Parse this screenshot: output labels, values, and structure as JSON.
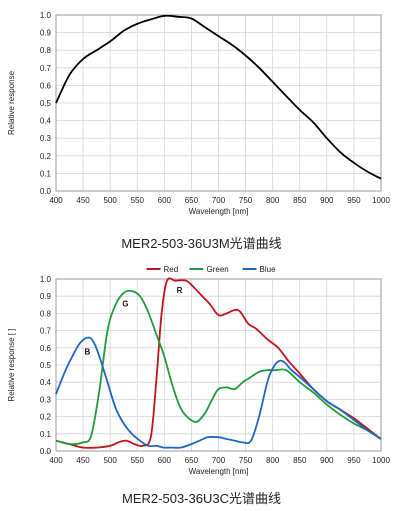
{
  "chart_data": [
    {
      "type": "line",
      "title": "",
      "xlabel": "Wavelength  [nm]",
      "ylabel": "Relative response",
      "xlim": [
        400,
        1000
      ],
      "ylim": [
        0,
        1.0
      ],
      "x_ticks": [
        "400",
        "450",
        "500",
        "550",
        "600",
        "650",
        "700",
        "750",
        "800",
        "850",
        "900",
        "950",
        "1000"
      ],
      "y_ticks": [
        "0.0",
        "0.1",
        "0.2",
        "0.3",
        "0.4",
        "0.5",
        "0.6",
        "0.7",
        "0.8",
        "0.9",
        "1.0"
      ],
      "grid": true,
      "series": [
        {
          "color": "#000000",
          "x": [
            400,
            425,
            450,
            475,
            500,
            525,
            550,
            575,
            600,
            625,
            650,
            675,
            700,
            725,
            750,
            775,
            800,
            825,
            850,
            875,
            900,
            925,
            950,
            975,
            1000
          ],
          "y": [
            0.5,
            0.66,
            0.75,
            0.8,
            0.85,
            0.91,
            0.95,
            0.975,
            0.995,
            0.99,
            0.98,
            0.93,
            0.88,
            0.83,
            0.77,
            0.7,
            0.62,
            0.54,
            0.46,
            0.39,
            0.3,
            0.22,
            0.16,
            0.11,
            0.07
          ]
        }
      ],
      "caption": "MER2-503-36U3M光谱曲线"
    },
    {
      "type": "line",
      "title": "",
      "xlabel": "Wavelength  [nm]",
      "ylabel": "Relative response  [ ]",
      "xlim": [
        400,
        1000
      ],
      "ylim": [
        0,
        1.0
      ],
      "x_ticks": [
        "400",
        "450",
        "500",
        "550",
        "600",
        "650",
        "700",
        "750",
        "800",
        "850",
        "900",
        "950",
        "1000"
      ],
      "y_ticks": [
        "0.0",
        "0.1",
        "0.2",
        "0.3",
        "0.4",
        "0.5",
        "0.6",
        "0.7",
        "0.8",
        "0.9",
        "1.0"
      ],
      "grid": true,
      "legend": "top-center",
      "series": [
        {
          "name": "Red",
          "color": "#c0141b",
          "x": [
            400,
            425,
            450,
            475,
            500,
            515,
            530,
            545,
            560,
            575,
            585,
            595,
            605,
            620,
            640,
            655,
            670,
            685,
            700,
            715,
            730,
            740,
            755,
            770,
            790,
            810,
            830,
            850,
            875,
            900,
            925,
            950,
            975,
            1000
          ],
          "y": [
            0.06,
            0.04,
            0.02,
            0.02,
            0.03,
            0.05,
            0.06,
            0.04,
            0.03,
            0.08,
            0.4,
            0.8,
            0.99,
            0.99,
            0.99,
            0.95,
            0.9,
            0.85,
            0.79,
            0.8,
            0.82,
            0.81,
            0.74,
            0.71,
            0.65,
            0.6,
            0.52,
            0.45,
            0.36,
            0.29,
            0.24,
            0.19,
            0.13,
            0.07
          ]
        },
        {
          "name": "Green",
          "color": "#1f9a3c",
          "x": [
            400,
            425,
            450,
            465,
            480,
            495,
            510,
            525,
            540,
            555,
            570,
            585,
            600,
            615,
            630,
            645,
            660,
            675,
            690,
            700,
            715,
            730,
            745,
            760,
            775,
            790,
            805,
            825,
            850,
            875,
            900,
            925,
            950,
            975,
            1000
          ],
          "y": [
            0.06,
            0.04,
            0.05,
            0.09,
            0.35,
            0.7,
            0.85,
            0.92,
            0.93,
            0.9,
            0.81,
            0.68,
            0.55,
            0.38,
            0.25,
            0.19,
            0.17,
            0.22,
            0.31,
            0.36,
            0.37,
            0.36,
            0.4,
            0.43,
            0.46,
            0.47,
            0.47,
            0.47,
            0.4,
            0.34,
            0.27,
            0.21,
            0.16,
            0.12,
            0.07
          ]
        },
        {
          "name": "Blue",
          "color": "#1f66c2",
          "x": [
            400,
            415,
            430,
            445,
            460,
            470,
            480,
            495,
            510,
            525,
            540,
            555,
            570,
            585,
            600,
            615,
            630,
            650,
            665,
            680,
            700,
            715,
            730,
            745,
            760,
            775,
            790,
            800,
            810,
            820,
            835,
            850,
            875,
            900,
            925,
            950,
            975,
            1000
          ],
          "y": [
            0.33,
            0.45,
            0.55,
            0.63,
            0.66,
            0.63,
            0.55,
            0.4,
            0.25,
            0.16,
            0.1,
            0.06,
            0.03,
            0.03,
            0.02,
            0.02,
            0.02,
            0.04,
            0.06,
            0.08,
            0.08,
            0.07,
            0.06,
            0.05,
            0.06,
            0.2,
            0.4,
            0.48,
            0.52,
            0.52,
            0.47,
            0.43,
            0.36,
            0.29,
            0.24,
            0.18,
            0.12,
            0.07
          ]
        }
      ],
      "annotations": [
        {
          "text": "R",
          "x": 628,
          "y": 0.92
        },
        {
          "text": "G",
          "x": 528,
          "y": 0.84
        },
        {
          "text": "B",
          "x": 458,
          "y": 0.56
        }
      ],
      "caption": "MER2-503-36U3C光谱曲线"
    }
  ]
}
